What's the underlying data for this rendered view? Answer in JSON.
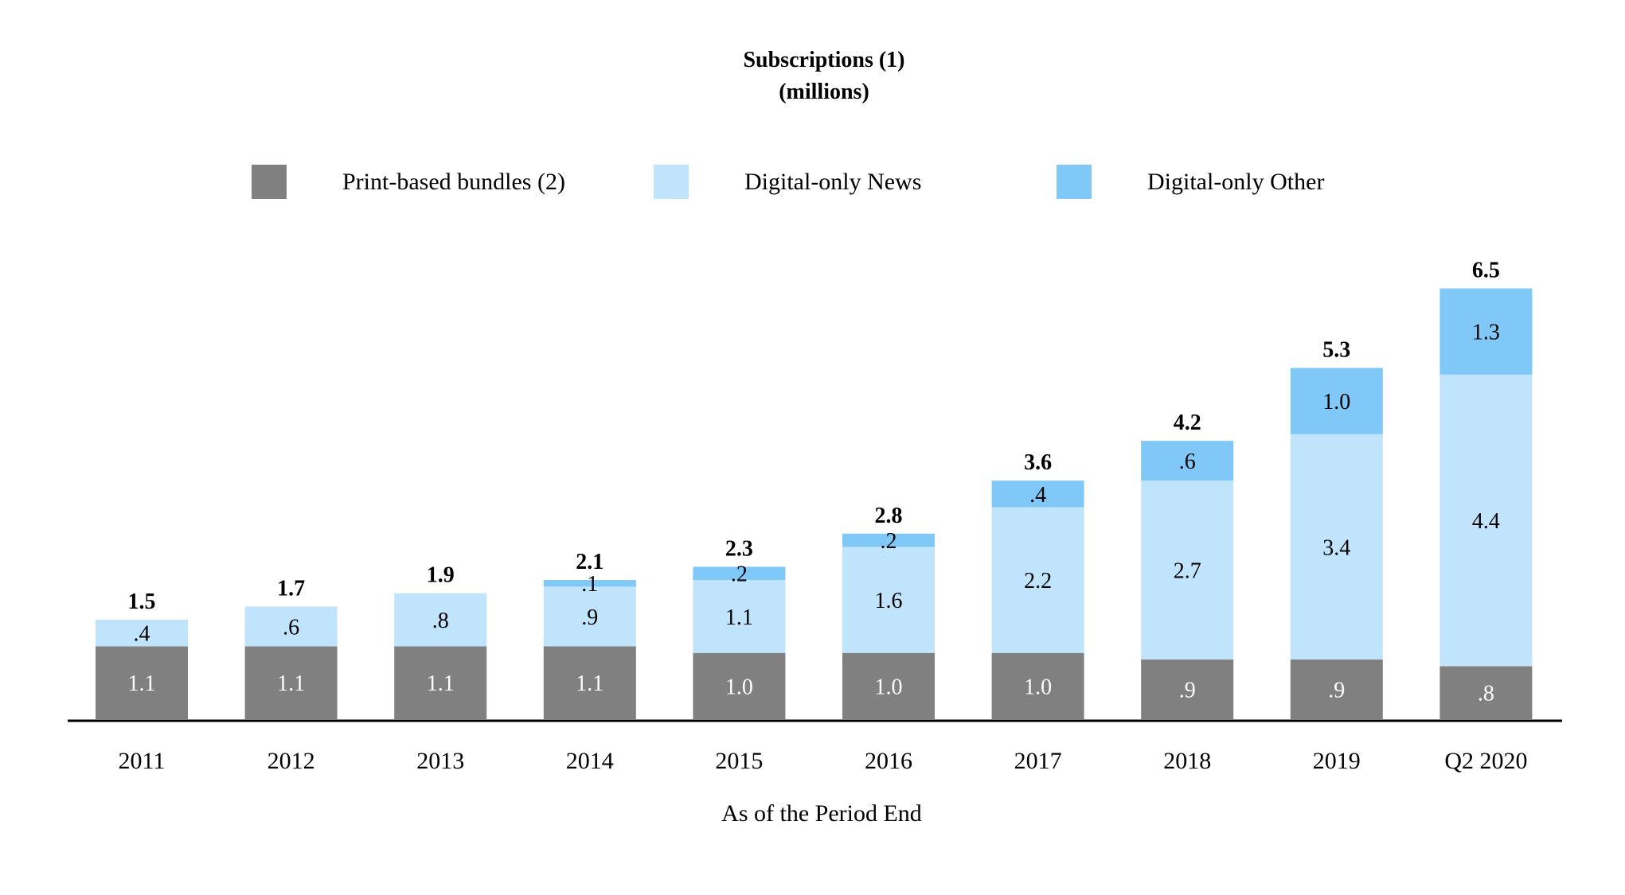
{
  "chart_data": {
    "type": "bar",
    "stacked": true,
    "title": "Subscriptions (1)",
    "subtitle": "(millions)",
    "xlabel": "As of the Period End",
    "ylabel": "",
    "legend_position": "top",
    "grid": false,
    "ylim": [
      0,
      7
    ],
    "categories": [
      "2011",
      "2012",
      "2013",
      "2014",
      "2015",
      "2016",
      "2017",
      "2018",
      "2019",
      "Q2 2020"
    ],
    "series": [
      {
        "name": "Print-based bundles (2)",
        "color": "#808080",
        "values": [
          1.1,
          1.1,
          1.1,
          1.1,
          1.0,
          1.0,
          1.0,
          0.9,
          0.9,
          0.8
        ],
        "labels": [
          "1.1",
          "1.1",
          "1.1",
          "1.1",
          "1.0",
          "1.0",
          "1.0",
          ".9",
          ".9",
          ".8"
        ]
      },
      {
        "name": "Digital-only News",
        "color": "#bfe4fc",
        "values": [
          0.4,
          0.6,
          0.8,
          0.9,
          1.1,
          1.6,
          2.2,
          2.7,
          3.4,
          4.4
        ],
        "labels": [
          ".4",
          ".6",
          ".8",
          ".9",
          "1.1",
          "1.6",
          "2.2",
          "2.7",
          "3.4",
          "4.4"
        ]
      },
      {
        "name": "Digital-only Other",
        "color": "#80c8f8",
        "values": [
          0,
          0,
          0,
          0.1,
          0.2,
          0.2,
          0.4,
          0.6,
          1.0,
          1.3
        ],
        "labels": [
          "",
          "",
          "",
          ".1",
          ".2",
          ".2",
          ".4",
          ".6",
          "1.0",
          "1.3"
        ]
      }
    ],
    "totals": [
      "1.5",
      "1.7",
      "1.9",
      "2.1",
      "2.3",
      "2.8",
      "3.6",
      "4.2",
      "5.3",
      "6.5"
    ]
  }
}
